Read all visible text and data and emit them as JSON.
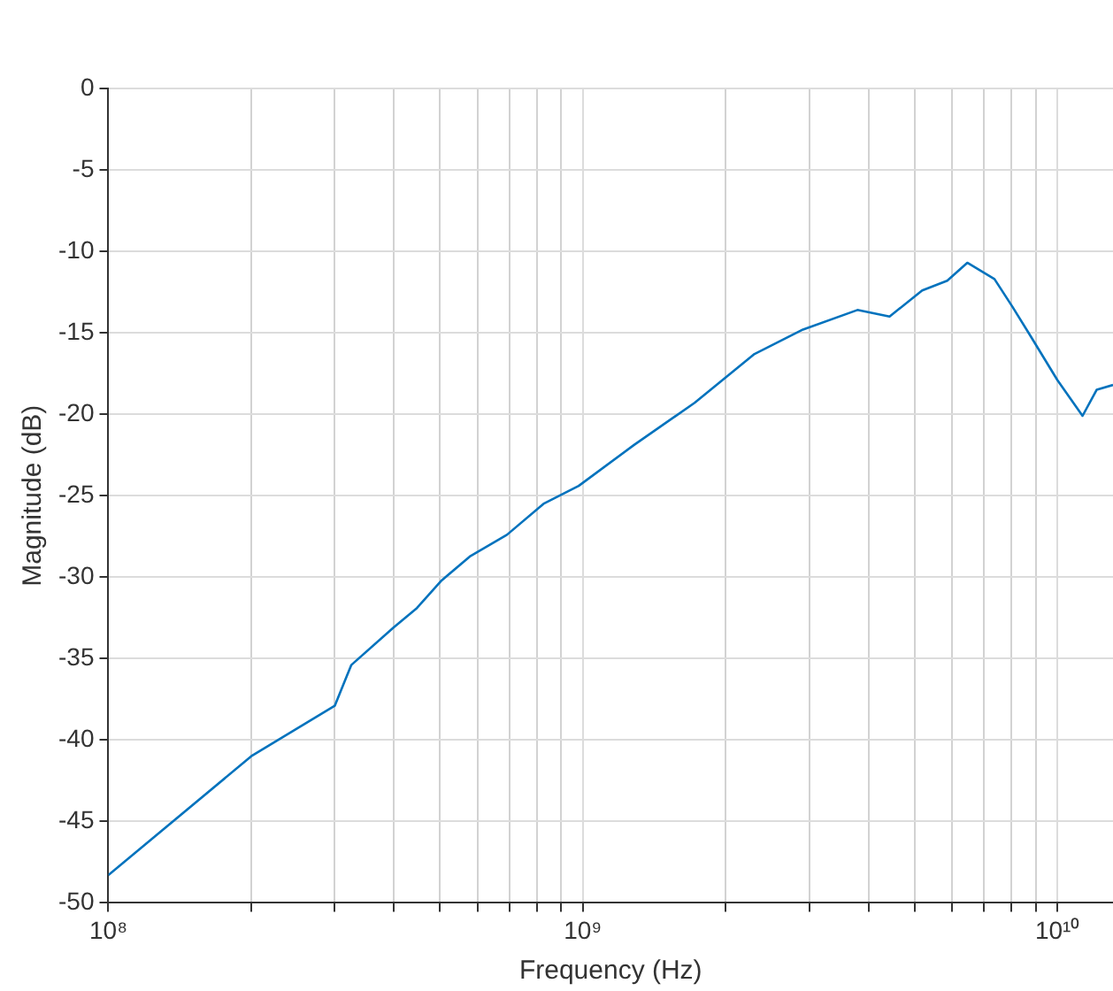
{
  "chart_data": {
    "type": "line",
    "xlabel": "Frequency (Hz)",
    "ylabel": "Magnitude (dB)",
    "log": "x",
    "grid": true,
    "legend": false,
    "marker": "none",
    "line_style": "solid",
    "xlim": [
      100000000,
      13100000000
    ],
    "ylim": [
      -50,
      0
    ],
    "xticks": [
      {
        "value": 100000000,
        "label": "10⁸"
      },
      {
        "value": 200000000,
        "label": null
      },
      {
        "value": 300000000,
        "label": null
      },
      {
        "value": 400000000,
        "label": null
      },
      {
        "value": 500000000,
        "label": null
      },
      {
        "value": 600000000,
        "label": null
      },
      {
        "value": 700000000,
        "label": null
      },
      {
        "value": 800000000,
        "label": null
      },
      {
        "value": 900000000,
        "label": null
      },
      {
        "value": 1000000000,
        "label": "10⁹"
      },
      {
        "value": 2000000000,
        "label": null
      },
      {
        "value": 3000000000,
        "label": null
      },
      {
        "value": 4000000000,
        "label": null
      },
      {
        "value": 5000000000,
        "label": null
      },
      {
        "value": 6000000000,
        "label": null
      },
      {
        "value": 7000000000,
        "label": null
      },
      {
        "value": 8000000000,
        "label": null
      },
      {
        "value": 9000000000,
        "label": null
      },
      {
        "value": 10000000000,
        "label": "10¹⁰"
      }
    ],
    "yticks": [
      -50,
      -45,
      -40,
      -35,
      -30,
      -25,
      -20,
      -15,
      -10,
      -5,
      0
    ],
    "series": [
      {
        "color": "#0072bd",
        "x": [
          100000000,
          200000000,
          300000000,
          325000000,
          399000000,
          447000000,
          504000000,
          580000000,
          692000000,
          826000000,
          980000000,
          1280000000,
          1720000000,
          2300000000,
          2910000000,
          3790000000,
          4430000000,
          5190000000,
          5860000000,
          6460000000,
          7370000000,
          8040000000,
          8780000000,
          10000000000,
          11300000000,
          12100000000,
          13100000000
        ],
        "values": [
          -48.3,
          -41.0,
          -37.9,
          -35.4,
          -33.1,
          -31.9,
          -30.2,
          -28.7,
          -27.4,
          -25.5,
          -24.4,
          -21.9,
          -19.3,
          -16.3,
          -14.8,
          -13.6,
          -14.0,
          -12.4,
          -11.8,
          -10.7,
          -11.7,
          -13.4,
          -15.2,
          -17.9,
          -20.1,
          -18.5,
          -18.2
        ]
      }
    ]
  }
}
